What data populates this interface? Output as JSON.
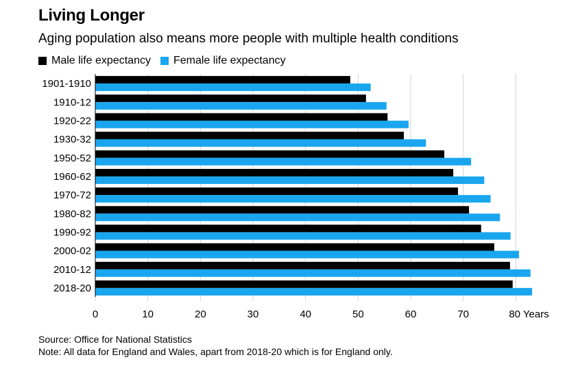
{
  "chart_data": {
    "type": "bar",
    "orientation": "horizontal",
    "title": "Living Longer",
    "subtitle": "Aging population also means more people with multiple health conditions",
    "categories": [
      "1901-1910",
      "1910-12",
      "1920-22",
      "1930-32",
      "1950-52",
      "1960-62",
      "1970-72",
      "1980-82",
      "1990-92",
      "2000-02",
      "2010-12",
      "2018-20"
    ],
    "series": [
      {
        "name": "Male life expectancy",
        "color": "#000000",
        "values": [
          48.5,
          51.5,
          55.6,
          58.7,
          66.4,
          68.1,
          69.0,
          71.1,
          73.4,
          75.9,
          78.9,
          79.4
        ]
      },
      {
        "name": "Female life expectancy",
        "color": "#1aa6ef",
        "values": [
          52.4,
          55.4,
          59.6,
          62.9,
          71.5,
          74.0,
          75.2,
          77.0,
          79.0,
          80.6,
          82.8,
          83.1
        ]
      }
    ],
    "xlim": [
      0,
      84
    ],
    "xticks": [
      0,
      10,
      20,
      30,
      40,
      50,
      60,
      70,
      80
    ],
    "xtick_labels": [
      "0",
      "10",
      "20",
      "30",
      "40",
      "50",
      "60",
      "70",
      "80 Years"
    ],
    "grid": true,
    "legend_position": "top-left"
  },
  "footer": {
    "source": "Source: Office for National Statistics",
    "note": "Note: All data for England and Wales, apart from 2018-20 which is for England only."
  }
}
